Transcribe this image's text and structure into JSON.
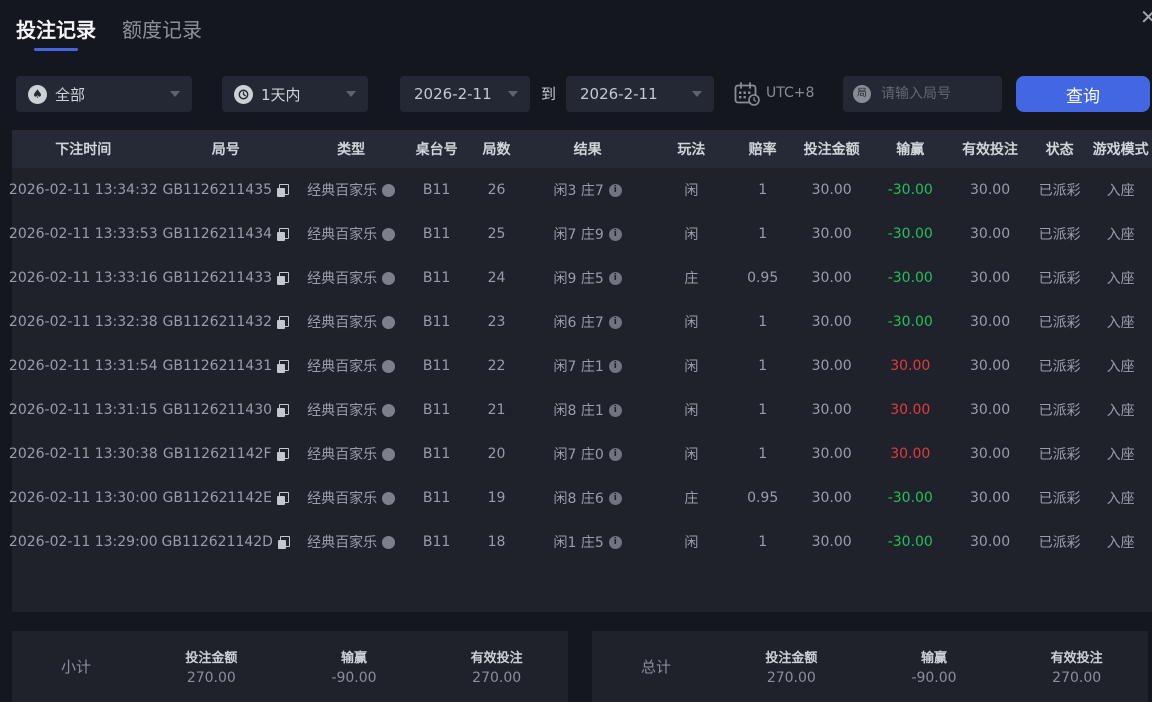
{
  "header": {
    "tabs": [
      {
        "label": "投注记录",
        "active": true
      },
      {
        "label": "额度记录",
        "active": false
      }
    ],
    "close_icon": "✕"
  },
  "filters": {
    "game_select": {
      "value": "全部",
      "icon": "spade-icon"
    },
    "period_select": {
      "value": "1天内",
      "icon": "clock-icon"
    },
    "date_start": "2026-2-11",
    "to_label": "到",
    "date_end": "2026-2-11",
    "timezone": "UTC+8",
    "round_search": {
      "icon_char": "局",
      "placeholder": "请输入局号"
    },
    "query_button": "查询"
  },
  "table": {
    "columns": [
      "下注时间",
      "局号",
      "类型",
      "桌台号",
      "局数",
      "结果",
      "玩法",
      "赔率",
      "投注金额",
      "输赢",
      "有效投注",
      "状态",
      "游戏模式"
    ],
    "rows": [
      {
        "time": "2026-02-11 13:34:32",
        "round_id": "GB1126211435",
        "type": "经典百家乐",
        "table_no": "B11",
        "round_no": "26",
        "result": "闲3 庄7",
        "play": "闲",
        "odds": "1",
        "bet_amount": "30.00",
        "win_loss": "-30.00",
        "win_loss_color": "green",
        "valid_bet": "30.00",
        "status": "已派彩",
        "mode": "入座"
      },
      {
        "time": "2026-02-11 13:33:53",
        "round_id": "GB1126211434",
        "type": "经典百家乐",
        "table_no": "B11",
        "round_no": "25",
        "result": "闲7 庄9",
        "play": "闲",
        "odds": "1",
        "bet_amount": "30.00",
        "win_loss": "-30.00",
        "win_loss_color": "green",
        "valid_bet": "30.00",
        "status": "已派彩",
        "mode": "入座"
      },
      {
        "time": "2026-02-11 13:33:16",
        "round_id": "GB1126211433",
        "type": "经典百家乐",
        "table_no": "B11",
        "round_no": "24",
        "result": "闲9 庄5",
        "play": "庄",
        "odds": "0.95",
        "bet_amount": "30.00",
        "win_loss": "-30.00",
        "win_loss_color": "green",
        "valid_bet": "30.00",
        "status": "已派彩",
        "mode": "入座"
      },
      {
        "time": "2026-02-11 13:32:38",
        "round_id": "GB1126211432",
        "type": "经典百家乐",
        "table_no": "B11",
        "round_no": "23",
        "result": "闲6 庄7",
        "play": "闲",
        "odds": "1",
        "bet_amount": "30.00",
        "win_loss": "-30.00",
        "win_loss_color": "green",
        "valid_bet": "30.00",
        "status": "已派彩",
        "mode": "入座"
      },
      {
        "time": "2026-02-11 13:31:54",
        "round_id": "GB1126211431",
        "type": "经典百家乐",
        "table_no": "B11",
        "round_no": "22",
        "result": "闲7 庄1",
        "play": "闲",
        "odds": "1",
        "bet_amount": "30.00",
        "win_loss": "30.00",
        "win_loss_color": "red",
        "valid_bet": "30.00",
        "status": "已派彩",
        "mode": "入座"
      },
      {
        "time": "2026-02-11 13:31:15",
        "round_id": "GB1126211430",
        "type": "经典百家乐",
        "table_no": "B11",
        "round_no": "21",
        "result": "闲8 庄1",
        "play": "闲",
        "odds": "1",
        "bet_amount": "30.00",
        "win_loss": "30.00",
        "win_loss_color": "red",
        "valid_bet": "30.00",
        "status": "已派彩",
        "mode": "入座"
      },
      {
        "time": "2026-02-11 13:30:38",
        "round_id": "GB112621142F",
        "type": "经典百家乐",
        "table_no": "B11",
        "round_no": "20",
        "result": "闲7 庄0",
        "play": "闲",
        "odds": "1",
        "bet_amount": "30.00",
        "win_loss": "30.00",
        "win_loss_color": "red",
        "valid_bet": "30.00",
        "status": "已派彩",
        "mode": "入座"
      },
      {
        "time": "2026-02-11 13:30:00",
        "round_id": "GB112621142E",
        "type": "经典百家乐",
        "table_no": "B11",
        "round_no": "19",
        "result": "闲8 庄6",
        "play": "庄",
        "odds": "0.95",
        "bet_amount": "30.00",
        "win_loss": "-30.00",
        "win_loss_color": "green",
        "valid_bet": "30.00",
        "status": "已派彩",
        "mode": "入座"
      },
      {
        "time": "2026-02-11 13:29:00",
        "round_id": "GB112621142D",
        "type": "经典百家乐",
        "table_no": "B11",
        "round_no": "18",
        "result": "闲1 庄5",
        "play": "闲",
        "odds": "1",
        "bet_amount": "30.00",
        "win_loss": "-30.00",
        "win_loss_color": "green",
        "valid_bet": "30.00",
        "status": "已派彩",
        "mode": "入座"
      }
    ]
  },
  "summary": {
    "subtotal": {
      "label": "小计",
      "items": [
        {
          "label": "投注金额",
          "value": "270.00",
          "color": "normal"
        },
        {
          "label": "输赢",
          "value": "-90.00",
          "color": "green"
        },
        {
          "label": "有效投注",
          "value": "270.00",
          "color": "normal"
        }
      ]
    },
    "total": {
      "label": "总计",
      "items": [
        {
          "label": "投注金额",
          "value": "270.00",
          "color": "normal"
        },
        {
          "label": "输赢",
          "value": "-90.00",
          "color": "green"
        },
        {
          "label": "有效投注",
          "value": "270.00",
          "color": "normal"
        }
      ]
    }
  },
  "colors": {
    "accent_blue": "#4367e3",
    "win_green": "#1ec15f",
    "loss_red": "#e23b3b"
  }
}
